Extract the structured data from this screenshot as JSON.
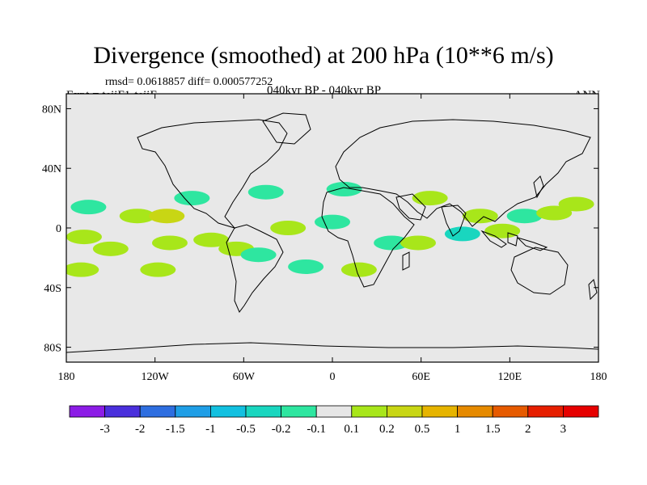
{
  "title": "Divergence (smoothed) at 200 hPa (10**6 m/s)",
  "stats": "rmsd= 0.0618857 diff= 0.000577252",
  "experiment": "Expt = teiiF1-teiiF",
  "period": "040kyr BP - 040kyr BP",
  "season": "ANN",
  "map": {
    "background_color": "#e8e8e8",
    "lat_labels": [
      "80N",
      "40N",
      "0",
      "40S",
      "80S"
    ],
    "lat_values": [
      80,
      40,
      0,
      -40,
      -80
    ],
    "lon_labels": [
      "180",
      "120W",
      "60W",
      "0",
      "60E",
      "120E",
      "180"
    ],
    "lon_values": [
      -180,
      -120,
      -60,
      0,
      60,
      120,
      180
    ]
  },
  "colorbar": {
    "labels": [
      "-3",
      "-2",
      "-1.5",
      "-1",
      "-0.5",
      "-0.2",
      "-0.1",
      "0.1",
      "0.2",
      "0.5",
      "1",
      "1.5",
      "2",
      "3"
    ],
    "colors": [
      "#8c1ce6",
      "#4a2fdc",
      "#2e6ee0",
      "#1f9ee6",
      "#12c0e0",
      "#19d6bf",
      "#2ee6a0",
      "#e6e6e6",
      "#a8e61a",
      "#c8d614",
      "#e6b400",
      "#e68a00",
      "#e65a00",
      "#e61e00",
      "#e60000"
    ]
  },
  "anomalies": [
    {
      "lon": -170,
      "lat": -28,
      "level": "0.1"
    },
    {
      "lon": -168,
      "lat": -6,
      "level": "0.1"
    },
    {
      "lon": -165,
      "lat": 14,
      "level": "-0.1"
    },
    {
      "lon": -150,
      "lat": -14,
      "level": "0.1"
    },
    {
      "lon": -132,
      "lat": 8,
      "level": "0.1"
    },
    {
      "lon": -112,
      "lat": 8,
      "level": "0.2"
    },
    {
      "lon": -110,
      "lat": -10,
      "level": "0.1"
    },
    {
      "lon": -118,
      "lat": -28,
      "level": "0.1"
    },
    {
      "lon": -95,
      "lat": 20,
      "level": "-0.1"
    },
    {
      "lon": -82,
      "lat": -8,
      "level": "0.1"
    },
    {
      "lon": -65,
      "lat": -14,
      "level": "0.1"
    },
    {
      "lon": -50,
      "lat": -18,
      "level": "-0.1"
    },
    {
      "lon": -45,
      "lat": 24,
      "level": "-0.1"
    },
    {
      "lon": -30,
      "lat": 0,
      "level": "0.1"
    },
    {
      "lon": -18,
      "lat": -26,
      "level": "-0.1"
    },
    {
      "lon": 0,
      "lat": 4,
      "level": "-0.1"
    },
    {
      "lon": 8,
      "lat": 26,
      "level": "-0.1"
    },
    {
      "lon": 18,
      "lat": -28,
      "level": "0.1"
    },
    {
      "lon": 40,
      "lat": -10,
      "level": "-0.1"
    },
    {
      "lon": 58,
      "lat": -10,
      "level": "0.1"
    },
    {
      "lon": 66,
      "lat": 20,
      "level": "0.1"
    },
    {
      "lon": 88,
      "lat": -4,
      "level": "-0.2"
    },
    {
      "lon": 100,
      "lat": 8,
      "level": "0.1"
    },
    {
      "lon": 115,
      "lat": -2,
      "level": "0.1"
    },
    {
      "lon": 130,
      "lat": 8,
      "level": "-0.1"
    },
    {
      "lon": 150,
      "lat": 10,
      "level": "0.1"
    },
    {
      "lon": 165,
      "lat": 16,
      "level": "0.1"
    }
  ]
}
